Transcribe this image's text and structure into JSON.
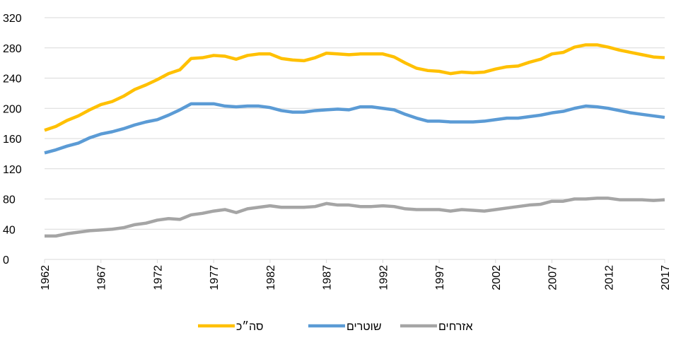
{
  "chart_data": {
    "type": "line",
    "x": [
      1962,
      1963,
      1964,
      1965,
      1966,
      1967,
      1968,
      1969,
      1970,
      1971,
      1972,
      1973,
      1974,
      1975,
      1976,
      1977,
      1978,
      1979,
      1980,
      1981,
      1982,
      1983,
      1984,
      1985,
      1986,
      1987,
      1988,
      1989,
      1990,
      1991,
      1992,
      1993,
      1994,
      1995,
      1996,
      1997,
      1998,
      1999,
      2000,
      2001,
      2002,
      2003,
      2004,
      2005,
      2006,
      2007,
      2008,
      2009,
      2010,
      2011,
      2012,
      2013,
      2014,
      2015,
      2016,
      2017
    ],
    "series": [
      {
        "name": "סה״כ",
        "color": "#FFC000",
        "values": [
          171,
          176,
          184,
          190,
          198,
          205,
          209,
          216,
          225,
          231,
          238,
          246,
          251,
          266,
          267,
          270,
          269,
          265,
          270,
          272,
          272,
          266,
          264,
          263,
          267,
          273,
          272,
          271,
          272,
          272,
          272,
          268,
          260,
          253,
          250,
          249,
          246,
          248,
          247,
          248,
          252,
          255,
          256,
          261,
          265,
          272,
          274,
          281,
          284,
          284,
          281,
          277,
          274,
          271,
          268,
          267
        ]
      },
      {
        "name": "שוטרים",
        "color": "#5B9BD5",
        "values": [
          141,
          145,
          150,
          154,
          161,
          166,
          169,
          173,
          178,
          182,
          185,
          191,
          198,
          206,
          206,
          206,
          203,
          202,
          203,
          203,
          201,
          197,
          195,
          195,
          197,
          198,
          199,
          198,
          202,
          202,
          200,
          198,
          192,
          187,
          183,
          183,
          182,
          182,
          182,
          183,
          185,
          187,
          187,
          189,
          191,
          194,
          196,
          200,
          203,
          202,
          200,
          197,
          194,
          192,
          190,
          188
        ]
      },
      {
        "name": "אזרחים",
        "color": "#A5A5A5",
        "values": [
          31,
          31,
          34,
          36,
          38,
          39,
          40,
          42,
          46,
          48,
          52,
          54,
          53,
          59,
          61,
          64,
          66,
          62,
          67,
          69,
          71,
          69,
          69,
          69,
          70,
          74,
          72,
          72,
          70,
          70,
          71,
          70,
          67,
          66,
          66,
          66,
          64,
          66,
          65,
          64,
          66,
          68,
          70,
          72,
          73,
          77,
          77,
          80,
          80,
          81,
          81,
          79,
          79,
          79,
          78,
          79
        ]
      }
    ],
    "xlim": [
      1962,
      2017
    ],
    "xticks": [
      1962,
      1967,
      1972,
      1977,
      1982,
      1987,
      1992,
      1997,
      2002,
      2007,
      2012,
      2017
    ],
    "ylim": [
      0,
      320
    ],
    "yticks": [
      0,
      40,
      80,
      120,
      160,
      200,
      240,
      280,
      320
    ],
    "grid": true,
    "legend": "bottom"
  }
}
